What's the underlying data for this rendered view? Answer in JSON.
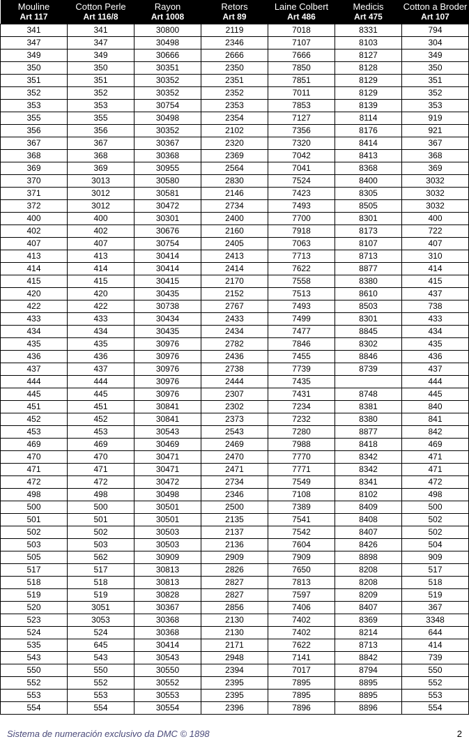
{
  "header": {
    "columns": [
      {
        "title": "Mouline",
        "sub": "Art 117"
      },
      {
        "title": "Cotton Perle",
        "sub": "Art 116/8"
      },
      {
        "title": "Rayon",
        "sub": "Art 1008"
      },
      {
        "title": "Retors",
        "sub": "Art 89"
      },
      {
        "title": "Laine Colbert",
        "sub": "Art 486"
      },
      {
        "title": "Medicis",
        "sub": "Art 475"
      },
      {
        "title": "Cotton a Broder",
        "sub": "Art 107"
      }
    ]
  },
  "rows": [
    [
      "341",
      "341",
      "30800",
      "2119",
      "7018",
      "8331",
      "794"
    ],
    [
      "347",
      "347",
      "30498",
      "2346",
      "7107",
      "8103",
      "304"
    ],
    [
      "349",
      "349",
      "30666",
      "2666",
      "7666",
      "8127",
      "349"
    ],
    [
      "350",
      "350",
      "30351",
      "2350",
      "7850",
      "8128",
      "350"
    ],
    [
      "351",
      "351",
      "30352",
      "2351",
      "7851",
      "8129",
      "351"
    ],
    [
      "352",
      "352",
      "30352",
      "2352",
      "7011",
      "8129",
      "352"
    ],
    [
      "353",
      "353",
      "30754",
      "2353",
      "7853",
      "8139",
      "353"
    ],
    [
      "355",
      "355",
      "30498",
      "2354",
      "7127",
      "8114",
      "919"
    ],
    [
      "356",
      "356",
      "30352",
      "2102",
      "7356",
      "8176",
      "921"
    ],
    [
      "367",
      "367",
      "30367",
      "2320",
      "7320",
      "8414",
      "367"
    ],
    [
      "368",
      "368",
      "30368",
      "2369",
      "7042",
      "8413",
      "368"
    ],
    [
      "369",
      "369",
      "30955",
      "2564",
      "7041",
      "8368",
      "369"
    ],
    [
      "370",
      "3013",
      "30580",
      "2830",
      "7524",
      "8400",
      "3032"
    ],
    [
      "371",
      "3012",
      "30581",
      "2146",
      "7423",
      "8305",
      "3032"
    ],
    [
      "372",
      "3012",
      "30472",
      "2734",
      "7493",
      "8505",
      "3032"
    ],
    [
      "400",
      "400",
      "30301",
      "2400",
      "7700",
      "8301",
      "400"
    ],
    [
      "402",
      "402",
      "30676",
      "2160",
      "7918",
      "8173",
      "722"
    ],
    [
      "407",
      "407",
      "30754",
      "2405",
      "7063",
      "8107",
      "407"
    ],
    [
      "413",
      "413",
      "30414",
      "2413",
      "7713",
      "8713",
      "310"
    ],
    [
      "414",
      "414",
      "30414",
      "2414",
      "7622",
      "8877",
      "414"
    ],
    [
      "415",
      "415",
      "30415",
      "2170",
      "7558",
      "8380",
      "415"
    ],
    [
      "420",
      "420",
      "30435",
      "2152",
      "7513",
      "8610",
      "437"
    ],
    [
      "422",
      "422",
      "30738",
      "2767",
      "7493",
      "8503",
      "738"
    ],
    [
      "433",
      "433",
      "30434",
      "2433",
      "7499",
      "8301",
      "433"
    ],
    [
      "434",
      "434",
      "30435",
      "2434",
      "7477",
      "8845",
      "434"
    ],
    [
      "435",
      "435",
      "30976",
      "2782",
      "7846",
      "8302",
      "435"
    ],
    [
      "436",
      "436",
      "30976",
      "2436",
      "7455",
      "8846",
      "436"
    ],
    [
      "437",
      "437",
      "30976",
      "2738",
      "7739",
      "8739",
      "437"
    ],
    [
      "444",
      "444",
      "30976",
      "2444",
      "7435",
      "",
      "444"
    ],
    [
      "445",
      "445",
      "30976",
      "2307",
      "7431",
      "8748",
      "445"
    ],
    [
      "451",
      "451",
      "30841",
      "2302",
      "7234",
      "8381",
      "840"
    ],
    [
      "452",
      "452",
      "30841",
      "2373",
      "7232",
      "8380",
      "841"
    ],
    [
      "453",
      "453",
      "30543",
      "2543",
      "7280",
      "8877",
      "842"
    ],
    [
      "469",
      "469",
      "30469",
      "2469",
      "7988",
      "8418",
      "469"
    ],
    [
      "470",
      "470",
      "30471",
      "2470",
      "7770",
      "8342",
      "471"
    ],
    [
      "471",
      "471",
      "30471",
      "2471",
      "7771",
      "8342",
      "471"
    ],
    [
      "472",
      "472",
      "30472",
      "2734",
      "7549",
      "8341",
      "472"
    ],
    [
      "498",
      "498",
      "30498",
      "2346",
      "7108",
      "8102",
      "498"
    ],
    [
      "500",
      "500",
      "30501",
      "2500",
      "7389",
      "8409",
      "500"
    ],
    [
      "501",
      "501",
      "30501",
      "2135",
      "7541",
      "8408",
      "502"
    ],
    [
      "502",
      "502",
      "30503",
      "2137",
      "7542",
      "8407",
      "502"
    ],
    [
      "503",
      "503",
      "30503",
      "2136",
      "7604",
      "8426",
      "504"
    ],
    [
      "505",
      "562",
      "30909",
      "2909",
      "7909",
      "8898",
      "909"
    ],
    [
      "517",
      "517",
      "30813",
      "2826",
      "7650",
      "8208",
      "517"
    ],
    [
      "518",
      "518",
      "30813",
      "2827",
      "7813",
      "8208",
      "518"
    ],
    [
      "519",
      "519",
      "30828",
      "2827",
      "7597",
      "8209",
      "519"
    ],
    [
      "520",
      "3051",
      "30367",
      "2856",
      "7406",
      "8407",
      "367"
    ],
    [
      "523",
      "3053",
      "30368",
      "2130",
      "7402",
      "8369",
      "3348"
    ],
    [
      "524",
      "524",
      "30368",
      "2130",
      "7402",
      "8214",
      "644"
    ],
    [
      "535",
      "645",
      "30414",
      "2171",
      "7622",
      "8713",
      "414"
    ],
    [
      "543",
      "543",
      "30543",
      "2948",
      "7141",
      "8842",
      "739"
    ],
    [
      "550",
      "550",
      "30550",
      "2394",
      "7017",
      "8794",
      "550"
    ],
    [
      "552",
      "552",
      "30552",
      "2395",
      "7895",
      "8895",
      "552"
    ],
    [
      "553",
      "553",
      "30553",
      "2395",
      "7895",
      "8895",
      "553"
    ],
    [
      "554",
      "554",
      "30554",
      "2396",
      "7896",
      "8896",
      "554"
    ]
  ],
  "footer": {
    "text": "Sistema de numeración exclusivo da DMC © 1898",
    "page": "2"
  },
  "style": {
    "header_bg": "#000000",
    "header_color": "#ffffff",
    "border_color": "#000000",
    "cell_font_size": 12,
    "header_font_size": 13,
    "footer_color": "#4a4a7a"
  }
}
